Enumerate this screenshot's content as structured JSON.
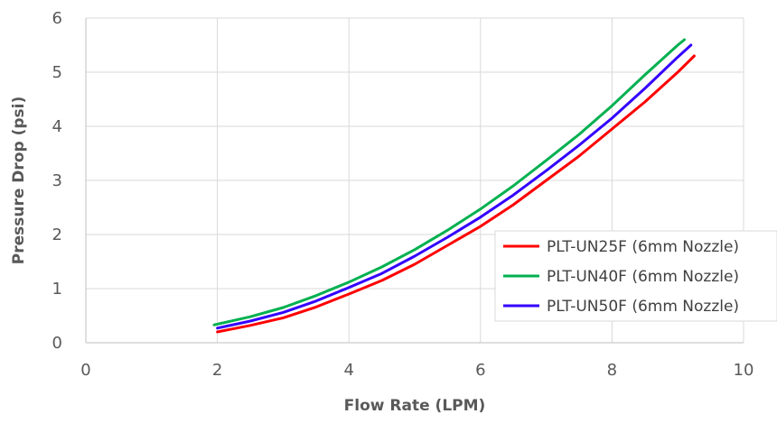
{
  "chart_data": {
    "type": "line",
    "title": "",
    "xlabel": "Flow Rate (LPM)",
    "ylabel": "Pressure Drop (psi)",
    "xlim": [
      0,
      10
    ],
    "ylim": [
      0,
      6
    ],
    "xticks": [
      0,
      2,
      4,
      6,
      8,
      10
    ],
    "yticks": [
      0,
      1,
      2,
      3,
      4,
      5,
      6
    ],
    "grid": true,
    "legend_position": "bottom-right",
    "series": [
      {
        "name": "PLT-UN25F (6mm Nozzle)",
        "color": "#ff0000",
        "x": [
          2.0,
          2.5,
          3.0,
          3.5,
          4.0,
          4.5,
          5.0,
          5.5,
          6.0,
          6.5,
          7.0,
          7.5,
          8.0,
          8.5,
          9.0,
          9.25
        ],
        "y": [
          0.2,
          0.32,
          0.46,
          0.66,
          0.9,
          1.15,
          1.45,
          1.8,
          2.15,
          2.55,
          3.0,
          3.45,
          3.95,
          4.45,
          5.0,
          5.3
        ]
      },
      {
        "name": "PLT-UN40F (6mm Nozzle)",
        "color": "#00b050",
        "x": [
          1.95,
          2.5,
          3.0,
          3.5,
          4.0,
          4.5,
          5.0,
          5.5,
          6.0,
          6.5,
          7.0,
          7.5,
          8.0,
          8.5,
          9.0,
          9.1
        ],
        "y": [
          0.33,
          0.48,
          0.65,
          0.87,
          1.12,
          1.4,
          1.72,
          2.08,
          2.47,
          2.9,
          3.37,
          3.85,
          4.38,
          4.95,
          5.5,
          5.6
        ]
      },
      {
        "name": "PLT-UN50F (6mm Nozzle)",
        "color": "#3300ff",
        "x": [
          2.0,
          2.5,
          3.0,
          3.5,
          4.0,
          4.5,
          5.0,
          5.5,
          6.0,
          6.5,
          7.0,
          7.5,
          8.0,
          8.5,
          9.0,
          9.2
        ],
        "y": [
          0.27,
          0.4,
          0.56,
          0.77,
          1.02,
          1.28,
          1.6,
          1.95,
          2.32,
          2.73,
          3.18,
          3.65,
          4.15,
          4.7,
          5.28,
          5.5
        ]
      }
    ]
  }
}
